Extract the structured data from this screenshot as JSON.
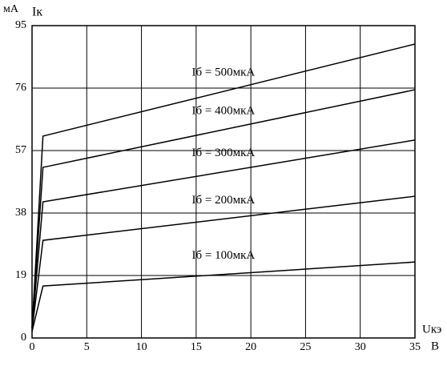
{
  "chart_data": {
    "type": "line",
    "y_unit_label": "мА",
    "y_label": "Iк",
    "x_label": "Uкэ",
    "x_unit_label": "В",
    "x": [
      0,
      1,
      35
    ],
    "series": [
      {
        "name": "Iб = 500мкА",
        "color": "#000000",
        "values": [
          3,
          61.4,
          89.4
        ]
      },
      {
        "name": "Iб = 400мкА",
        "color": "#000000",
        "values": [
          3,
          51.9,
          75.5
        ]
      },
      {
        "name": "Iб = 300мкА",
        "color": "#000000",
        "values": [
          3,
          41.4,
          60.2
        ]
      },
      {
        "name": "Iб = 200мкА",
        "color": "#000000",
        "values": [
          2.5,
          29.7,
          43.1
        ]
      },
      {
        "name": "Iб = 100мкА",
        "color": "#000000",
        "values": [
          2,
          15.8,
          23.1
        ]
      }
    ],
    "xlim": [
      0,
      35
    ],
    "xticks": [
      0,
      5,
      10,
      15,
      20,
      25,
      30,
      35
    ],
    "ylim": [
      0,
      95
    ],
    "yticks": [
      0,
      19,
      38,
      57,
      76,
      95
    ],
    "grid": true
  }
}
